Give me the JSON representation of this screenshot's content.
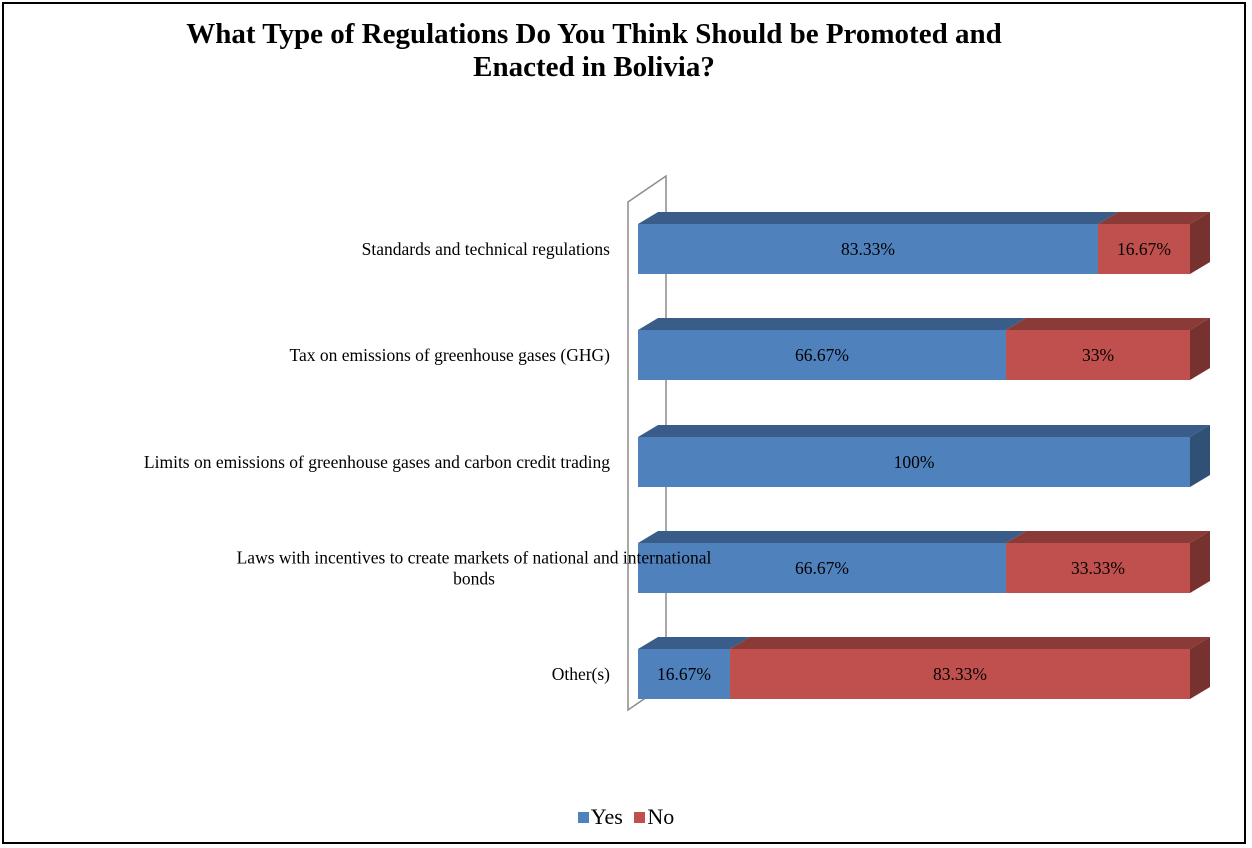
{
  "chart_data": {
    "type": "bar",
    "orientation": "horizontal",
    "stacked": true,
    "percent_stacked": true,
    "style": "3d",
    "title_lines": [
      "What Type of Regulations Do You Think Should be Promoted and",
      "Enacted in Bolivia?"
    ],
    "categories": [
      "Standards and technical regulations",
      "Tax on emissions of greenhouse gases (GHG)",
      "Limits on emissions of greenhouse gases and carbon credit trading",
      "Laws with incentives to create markets of national and international bonds",
      "Other(s)"
    ],
    "category_label_lines": [
      [
        "Standards and technical regulations"
      ],
      [
        "Tax on emissions of greenhouse gases (GHG)"
      ],
      [
        "Limits on emissions of greenhouse gases and carbon credit trading"
      ],
      [
        "Laws with incentives to create markets of national and international",
        "bonds"
      ],
      [
        "Other(s)"
      ]
    ],
    "series": [
      {
        "name": "Yes",
        "color": "#4f81bd",
        "values": [
          83.33,
          66.67,
          100,
          66.67,
          16.67
        ],
        "labels": [
          "83.33%",
          "66.67%",
          "100%",
          "66.67%",
          "16.67%"
        ]
      },
      {
        "name": "No",
        "color": "#c0504d",
        "values": [
          16.67,
          33.33,
          0,
          33.33,
          83.33
        ],
        "labels": [
          "16.67%",
          "33%",
          "",
          "33.33%",
          "83.33%"
        ]
      }
    ],
    "xlim": [
      0,
      100
    ],
    "grid": false,
    "legend_position": "bottom"
  }
}
